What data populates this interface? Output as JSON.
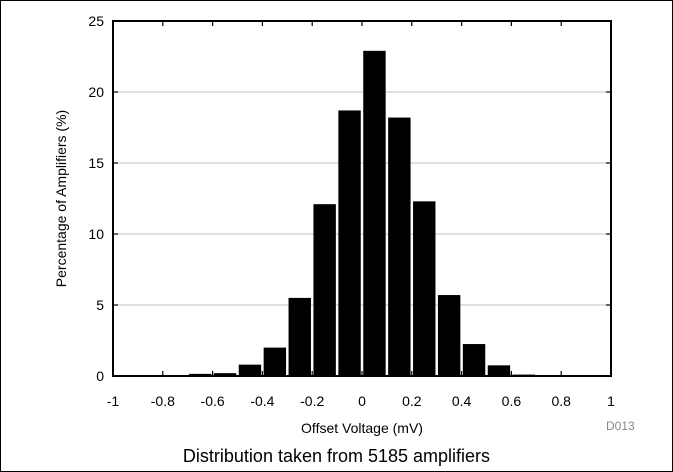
{
  "caption": "Distribution taken from 5185 amplifiers",
  "figure_id": "D013",
  "chart_data": {
    "type": "bar",
    "xlabel": "Offset Voltage (mV)",
    "ylabel": "Percentage of Amplifiers (%)",
    "xlim": [
      -1,
      1
    ],
    "ylim": [
      0,
      25
    ],
    "x_ticks": [
      "-1",
      "-0.8",
      "-0.6",
      "-0.4",
      "-0.2",
      "0",
      "0.2",
      "0.4",
      "0.6",
      "0.8",
      "1"
    ],
    "y_ticks": [
      "0",
      "5",
      "10",
      "15",
      "20",
      "25"
    ],
    "grid": true,
    "bar_width": 0.09,
    "x": [
      -0.95,
      -0.85,
      -0.75,
      -0.65,
      -0.55,
      -0.45,
      -0.35,
      -0.25,
      -0.15,
      -0.05,
      0.05,
      0.15,
      0.25,
      0.35,
      0.45,
      0.55,
      0.65,
      0.75,
      0.85,
      0.95
    ],
    "values": [
      0.05,
      0.05,
      0.05,
      0.15,
      0.2,
      0.8,
      2.0,
      5.5,
      12.1,
      18.7,
      22.9,
      18.2,
      12.3,
      5.7,
      2.25,
      0.75,
      0.1,
      0.03,
      0.02,
      0.03
    ],
    "bar_color": "#000000",
    "grid_color": "#c0c0c0"
  }
}
